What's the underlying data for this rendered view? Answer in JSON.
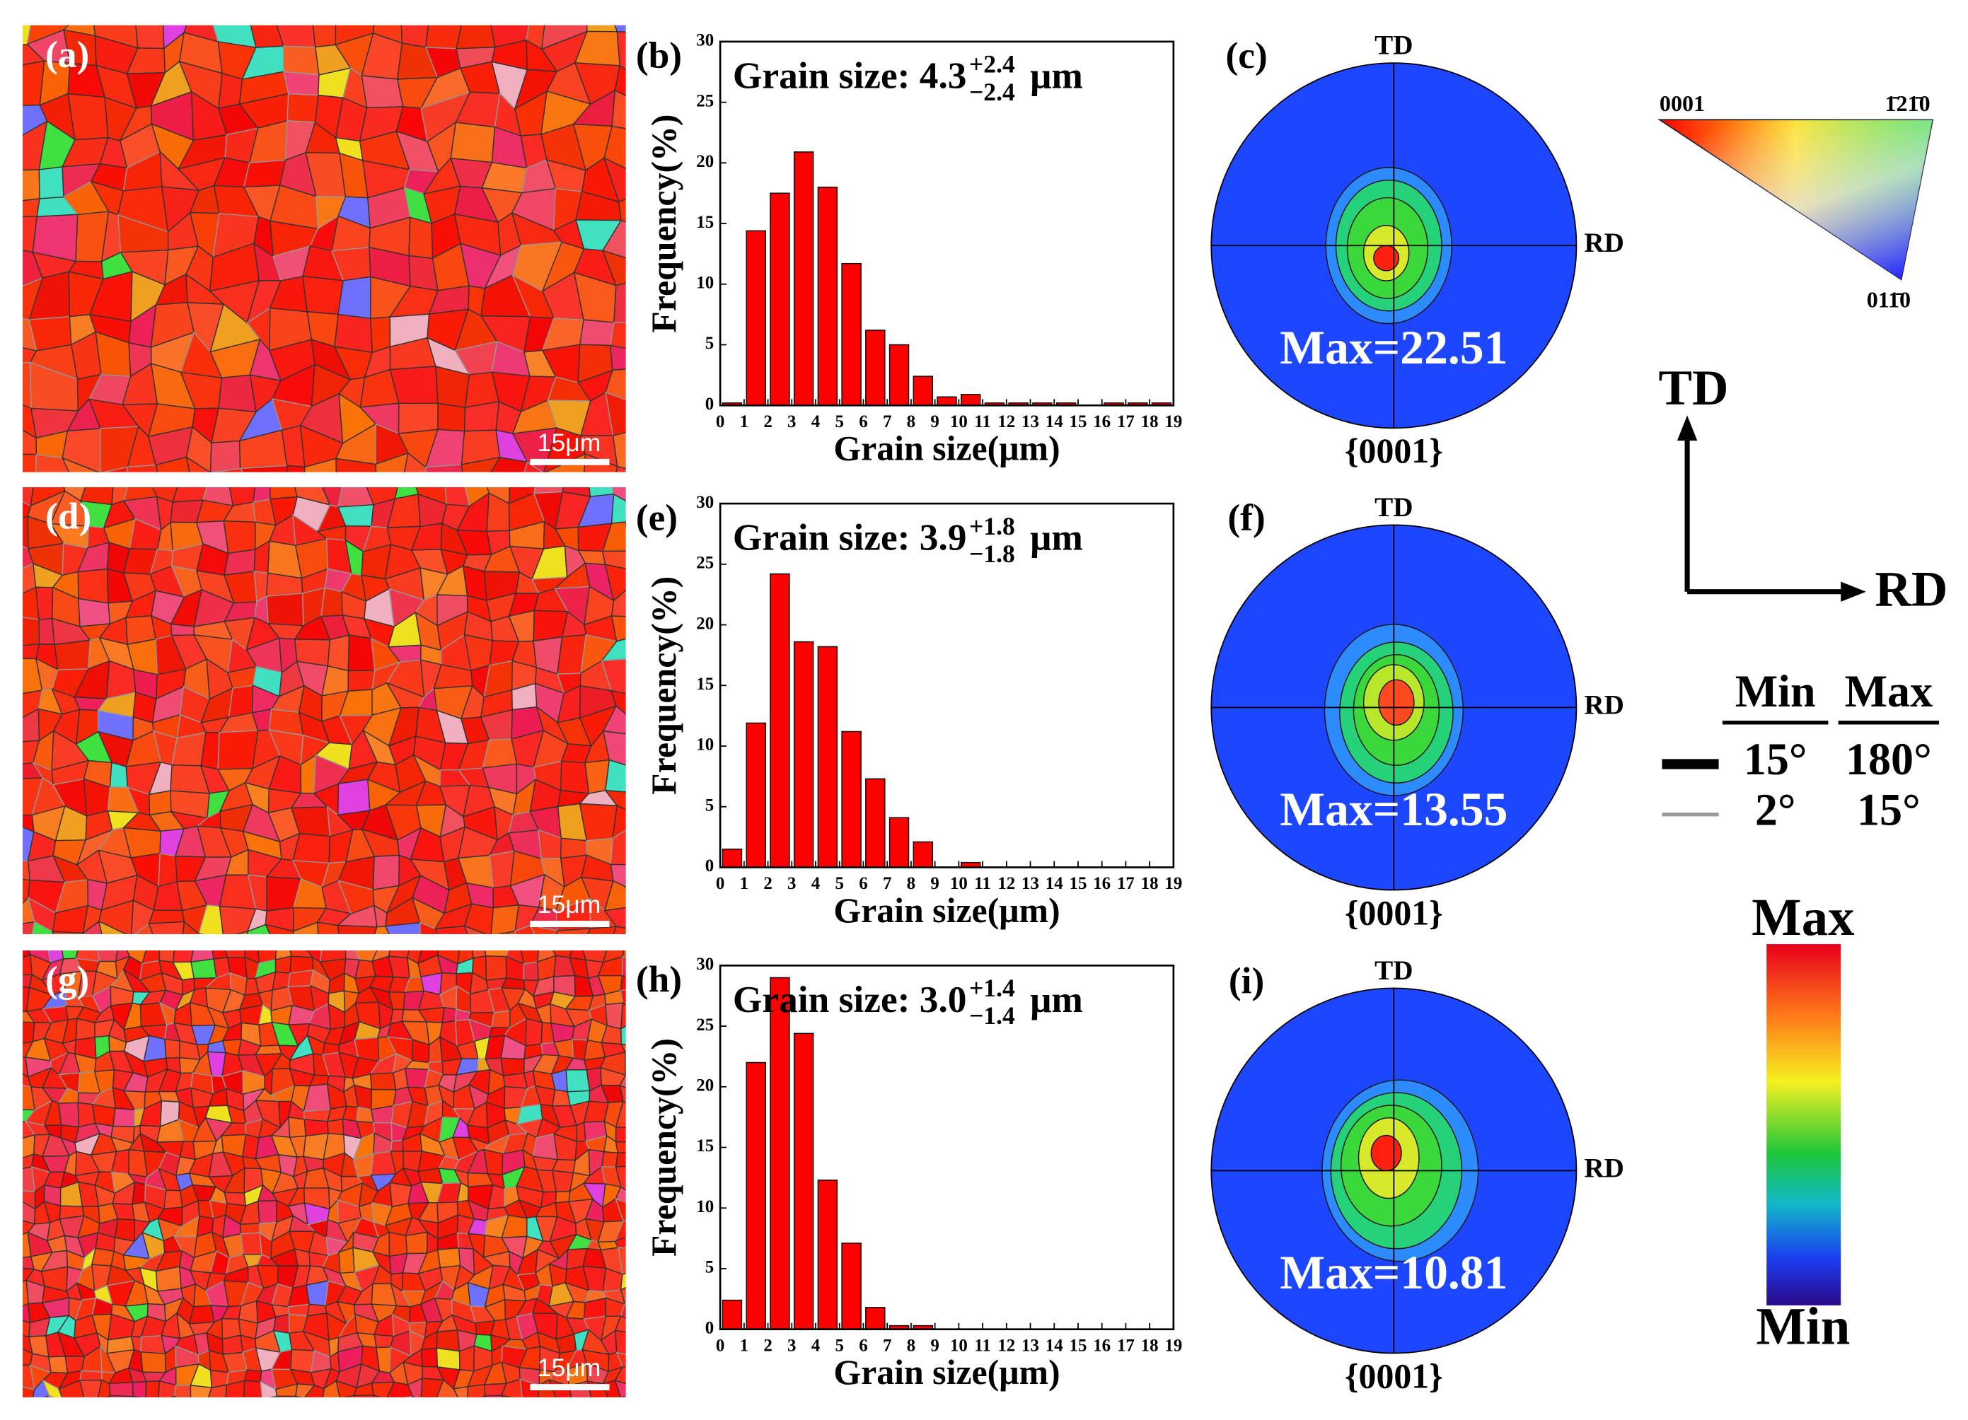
{
  "chart_data": [
    {
      "type": "histogram",
      "panel": "(b)",
      "annotation": {
        "text": "Grain size: 4.3",
        "upper": "+2.4",
        "lower": "−2.4",
        "unit": "μm"
      },
      "xlabel": "Grain size(μm)",
      "ylabel": "Frequency(%)",
      "bins": [
        0,
        1,
        2,
        3,
        4,
        5,
        6,
        7,
        8,
        9,
        10,
        11,
        12,
        13,
        14,
        15,
        16,
        17,
        18,
        19
      ],
      "counts": [
        0.2,
        14.4,
        17.5,
        20.9,
        18,
        11.7,
        6.2,
        5,
        2.4,
        0.7,
        0.9,
        0.2,
        0.2,
        0.2,
        0.2,
        0,
        0.2,
        0.2,
        0.2
      ],
      "xlim": [
        0,
        19
      ],
      "xticks": [
        0,
        1,
        2,
        3,
        4,
        5,
        6,
        7,
        8,
        9,
        10,
        11,
        12,
        13,
        14,
        15,
        16,
        17,
        18,
        19
      ],
      "ylim": [
        0,
        30
      ],
      "yticks": [
        0,
        5,
        10,
        15,
        20,
        25,
        30
      ],
      "color": "#ff0000"
    },
    {
      "type": "histogram",
      "panel": "(e)",
      "annotation": {
        "text": "Grain size: 3.9",
        "upper": "+1.8",
        "lower": "−1.8",
        "unit": "μm"
      },
      "xlabel": "Grain size(μm)",
      "ylabel": "Frequency(%)",
      "bins": [
        0,
        1,
        2,
        3,
        4,
        5,
        6,
        7,
        8,
        9,
        10,
        11,
        12,
        13,
        14,
        15,
        16,
        17,
        18,
        19
      ],
      "counts": [
        1.5,
        11.9,
        24.2,
        18.6,
        18.2,
        11.2,
        7.3,
        4.1,
        2.1,
        0,
        0.4,
        0,
        0,
        0,
        0,
        0,
        0,
        0,
        0
      ],
      "xlim": [
        0,
        19
      ],
      "xticks": [
        0,
        1,
        2,
        3,
        4,
        5,
        6,
        7,
        8,
        9,
        10,
        11,
        12,
        13,
        14,
        15,
        16,
        17,
        18,
        19
      ],
      "ylim": [
        0,
        30
      ],
      "yticks": [
        0,
        5,
        10,
        15,
        20,
        25,
        30
      ],
      "color": "#ff0000"
    },
    {
      "type": "histogram",
      "panel": "(h)",
      "annotation": {
        "text": "Grain size: 3.0",
        "upper": "+1.4",
        "lower": "−1.4",
        "unit": "μm"
      },
      "xlabel": "Grain size(μm)",
      "ylabel": "Frequency(%)",
      "bins": [
        0,
        1,
        2,
        3,
        4,
        5,
        6,
        7,
        8,
        9,
        10,
        11,
        12,
        13,
        14,
        15,
        16,
        17,
        18,
        19
      ],
      "counts": [
        2.4,
        22,
        29,
        24.4,
        12.3,
        7.1,
        1.8,
        0.3,
        0.3,
        0,
        0,
        0,
        0,
        0,
        0,
        0,
        0,
        0,
        0
      ],
      "xlim": [
        0,
        19
      ],
      "xticks": [
        0,
        1,
        2,
        3,
        4,
        5,
        6,
        7,
        8,
        9,
        10,
        11,
        12,
        13,
        14,
        15,
        16,
        17,
        18,
        19
      ],
      "ylim": [
        0,
        30
      ],
      "yticks": [
        0,
        5,
        10,
        15,
        20,
        25,
        30
      ],
      "color": "#ff0000"
    }
  ],
  "maps": [
    {
      "label": "(a)",
      "scale_bar": "15μm"
    },
    {
      "label": "(d)",
      "scale_bar": "15μm"
    },
    {
      "label": "(g)",
      "scale_bar": "15μm"
    }
  ],
  "pole_figures": [
    {
      "label": "(c)",
      "top": "TD",
      "right": "RD",
      "bottom": "{0001}",
      "max": "Max=22.51"
    },
    {
      "label": "(f)",
      "top": "TD",
      "right": "RD",
      "bottom": "{0001}",
      "max": "Max=13.55"
    },
    {
      "label": "(i)",
      "top": "TD",
      "right": "RD",
      "bottom": "{0001}",
      "max": "Max=10.81"
    }
  ],
  "ipf_key": {
    "left": "0001",
    "right": "1̄21̄0",
    "bottom": "011̄0"
  },
  "axes_key": {
    "up": "TD",
    "right": "RD"
  },
  "boundary_key": {
    "headers": [
      "Min",
      "Max"
    ],
    "rows": [
      [
        "15°",
        "180°"
      ],
      [
        "2°",
        "15°"
      ]
    ]
  },
  "colorbar": {
    "top": "Max",
    "bottom": "Min"
  }
}
